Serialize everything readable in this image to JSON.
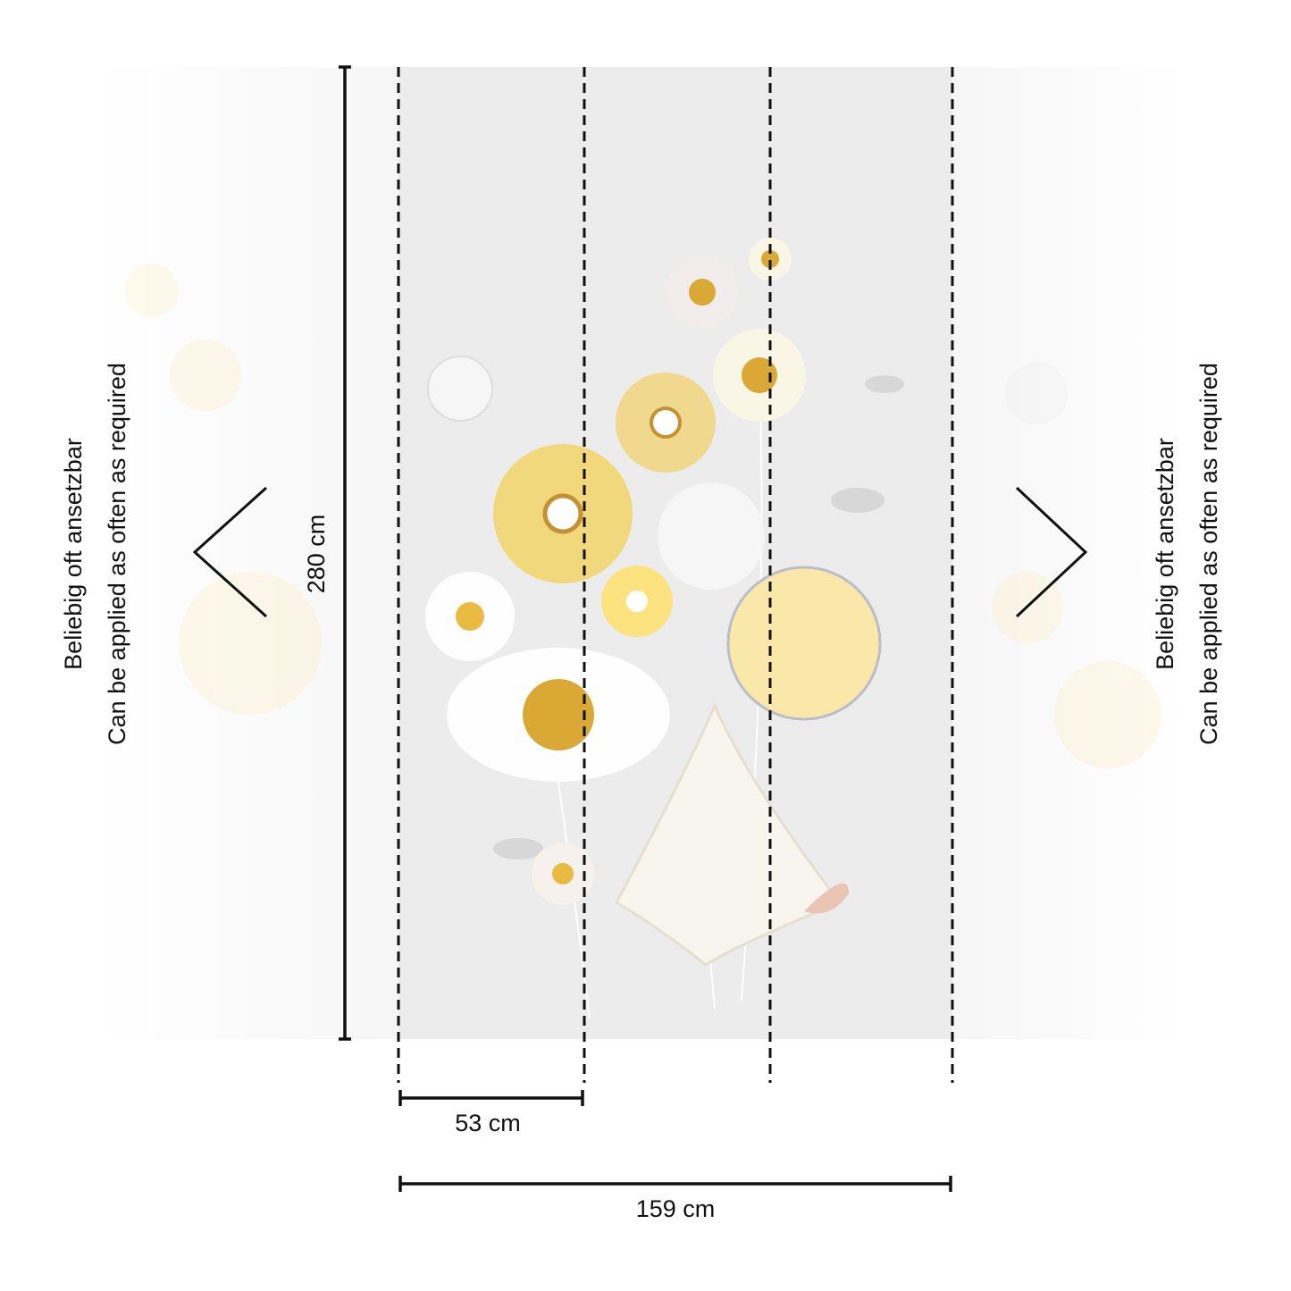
{
  "dimensions": {
    "height": "280 cm",
    "panel_width": "53 cm",
    "total_width": "159 cm"
  },
  "side_notes": {
    "left": [
      "Beliebig oft ansetzbar",
      "Can be applied as often as required"
    ],
    "right": [
      "Beliebig oft ansetzbar",
      "Can be applied as often as required"
    ]
  }
}
